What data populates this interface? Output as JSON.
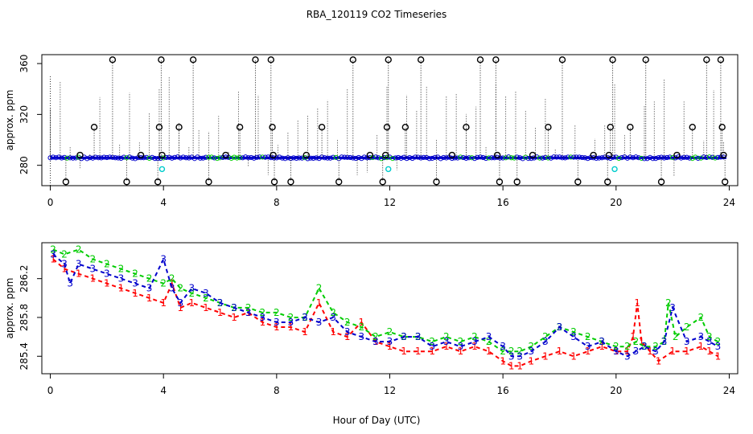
{
  "title": "RBA_120119  CO2 Timeseries",
  "xlabel": "Hour of Day (UTC)",
  "colors": {
    "s1": "#ff0000",
    "s2": "#00cc00",
    "s3": "#0000cc",
    "flag": "#000000",
    "cyan": "#00cccc"
  },
  "chart_data": [
    {
      "type": "scatter",
      "name": "top",
      "ylabel": "approx. ppm",
      "xlim": [
        -0.3,
        24.3
      ],
      "ylim": [
        264,
        367
      ],
      "xticks": [
        0,
        4,
        8,
        12,
        16,
        20,
        24
      ],
      "yticks": [
        280,
        320,
        360
      ],
      "baseline_ppm": 285.9,
      "flag_points": [
        [
          0.55,
          267
        ],
        [
          1.05,
          288
        ],
        [
          1.55,
          310
        ],
        [
          2.2,
          363
        ],
        [
          2.7,
          267
        ],
        [
          3.2,
          288
        ],
        [
          3.8,
          267
        ],
        [
          3.85,
          310
        ],
        [
          3.92,
          363
        ],
        [
          3.95,
          288
        ],
        [
          4.55,
          310
        ],
        [
          5.05,
          363
        ],
        [
          5.6,
          267
        ],
        [
          6.2,
          288
        ],
        [
          6.7,
          310
        ],
        [
          7.25,
          363
        ],
        [
          7.8,
          363
        ],
        [
          7.85,
          310
        ],
        [
          7.88,
          288
        ],
        [
          7.92,
          267
        ],
        [
          8.5,
          267
        ],
        [
          9.05,
          288
        ],
        [
          9.6,
          310
        ],
        [
          10.2,
          267
        ],
        [
          10.7,
          363
        ],
        [
          11.3,
          288
        ],
        [
          11.75,
          267
        ],
        [
          11.85,
          288
        ],
        [
          11.9,
          310
        ],
        [
          11.95,
          363
        ],
        [
          12.55,
          310
        ],
        [
          13.1,
          363
        ],
        [
          13.65,
          267
        ],
        [
          14.2,
          288
        ],
        [
          14.7,
          310
        ],
        [
          15.2,
          363
        ],
        [
          15.75,
          363
        ],
        [
          15.8,
          288
        ],
        [
          15.88,
          267
        ],
        [
          16.5,
          267
        ],
        [
          17.05,
          288
        ],
        [
          17.6,
          310
        ],
        [
          18.1,
          363
        ],
        [
          18.65,
          267
        ],
        [
          19.2,
          288
        ],
        [
          19.7,
          267
        ],
        [
          19.75,
          288
        ],
        [
          19.8,
          310
        ],
        [
          19.88,
          363
        ],
        [
          20.5,
          310
        ],
        [
          21.05,
          363
        ],
        [
          21.6,
          267
        ],
        [
          22.15,
          288
        ],
        [
          22.7,
          310
        ],
        [
          23.2,
          363
        ],
        [
          23.7,
          363
        ],
        [
          23.75,
          310
        ],
        [
          23.8,
          288
        ],
        [
          23.85,
          267
        ]
      ],
      "cyan_points": [
        [
          3.95,
          277
        ],
        [
          11.95,
          277
        ],
        [
          19.95,
          277
        ]
      ]
    },
    {
      "type": "line",
      "name": "bottom",
      "ylabel": "approx. ppm",
      "xlim": [
        -0.3,
        24.3
      ],
      "ylim": [
        285.22,
        286.57
      ],
      "xticks": [
        0,
        4,
        8,
        12,
        16,
        20,
        24
      ],
      "yticks": [
        285.4,
        285.8,
        286.2
      ],
      "series": [
        {
          "name": "1",
          "label": "1",
          "x": [
            0.1,
            0.5,
            1,
            1.5,
            2,
            2.5,
            3,
            3.5,
            4,
            4.3,
            4.6,
            5,
            5.5,
            6,
            6.5,
            7,
            7.5,
            8,
            8.5,
            9,
            9.5,
            10,
            10.5,
            11,
            11.5,
            12,
            12.5,
            13,
            13.5,
            14,
            14.5,
            15,
            15.5,
            16,
            16.3,
            16.6,
            17,
            17.5,
            18,
            18.5,
            19,
            19.5,
            20,
            20.4,
            20.6,
            20.75,
            20.9,
            21.2,
            21.5,
            22,
            22.5,
            23,
            23.3,
            23.6
          ],
          "values": [
            286.4,
            286.3,
            286.25,
            286.2,
            286.15,
            286.1,
            286.05,
            286.0,
            285.95,
            286.15,
            285.9,
            285.95,
            285.9,
            285.85,
            285.8,
            285.85,
            285.75,
            285.7,
            285.7,
            285.65,
            285.95,
            285.65,
            285.6,
            285.75,
            285.55,
            285.5,
            285.45,
            285.45,
            285.45,
            285.5,
            285.45,
            285.5,
            285.45,
            285.35,
            285.3,
            285.3,
            285.35,
            285.4,
            285.45,
            285.4,
            285.45,
            285.5,
            285.45,
            285.45,
            285.6,
            285.95,
            285.55,
            285.45,
            285.35,
            285.45,
            285.45,
            285.5,
            285.45,
            285.4
          ]
        },
        {
          "name": "2",
          "label": "2",
          "x": [
            0.1,
            0.5,
            1,
            1.5,
            2,
            2.5,
            3,
            3.5,
            4,
            4.3,
            4.6,
            5,
            5.5,
            6,
            6.5,
            7,
            7.5,
            8,
            8.5,
            9,
            9.5,
            10,
            10.5,
            11,
            11.5,
            12,
            12.5,
            13,
            13.5,
            14,
            14.5,
            15,
            15.5,
            16,
            16.3,
            16.6,
            17,
            17.5,
            18,
            18.5,
            19,
            19.5,
            20,
            20.4,
            20.7,
            21,
            21.4,
            21.7,
            21.85,
            22.1,
            22.5,
            23,
            23.3,
            23.6
          ],
          "values": [
            286.5,
            286.45,
            286.5,
            286.4,
            286.35,
            286.3,
            286.25,
            286.2,
            286.15,
            286.2,
            286.1,
            286.05,
            286.0,
            285.95,
            285.9,
            285.9,
            285.85,
            285.85,
            285.8,
            285.8,
            286.1,
            285.85,
            285.75,
            285.7,
            285.6,
            285.65,
            285.6,
            285.6,
            285.55,
            285.6,
            285.55,
            285.6,
            285.55,
            285.45,
            285.45,
            285.45,
            285.5,
            285.6,
            285.7,
            285.65,
            285.6,
            285.55,
            285.5,
            285.5,
            285.55,
            285.5,
            285.5,
            285.55,
            285.95,
            285.6,
            285.7,
            285.8,
            285.6,
            285.55
          ]
        },
        {
          "name": "3",
          "label": "3",
          "x": [
            0.1,
            0.5,
            0.7,
            1,
            1.5,
            2,
            2.5,
            3,
            3.5,
            4,
            4.3,
            4.6,
            5,
            5.5,
            6,
            6.5,
            7,
            7.5,
            8,
            8.5,
            9,
            9.5,
            10,
            10.5,
            11,
            11.5,
            12,
            12.5,
            13,
            13.5,
            14,
            14.5,
            15,
            15.5,
            16,
            16.3,
            16.6,
            17,
            17.5,
            18,
            18.5,
            19,
            19.5,
            20,
            20.4,
            20.7,
            21,
            21.4,
            21.7,
            22,
            22.5,
            23,
            23.3,
            23.6
          ],
          "values": [
            286.45,
            286.35,
            286.15,
            286.35,
            286.3,
            286.25,
            286.2,
            286.15,
            286.1,
            286.4,
            286.1,
            285.95,
            286.1,
            286.05,
            285.95,
            285.9,
            285.85,
            285.8,
            285.75,
            285.75,
            285.8,
            285.75,
            285.8,
            285.65,
            285.6,
            285.55,
            285.55,
            285.6,
            285.6,
            285.5,
            285.55,
            285.5,
            285.55,
            285.6,
            285.5,
            285.4,
            285.4,
            285.45,
            285.55,
            285.7,
            285.6,
            285.5,
            285.55,
            285.45,
            285.4,
            285.45,
            285.5,
            285.45,
            285.55,
            285.9,
            285.55,
            285.6,
            285.55,
            285.5
          ]
        }
      ]
    }
  ]
}
